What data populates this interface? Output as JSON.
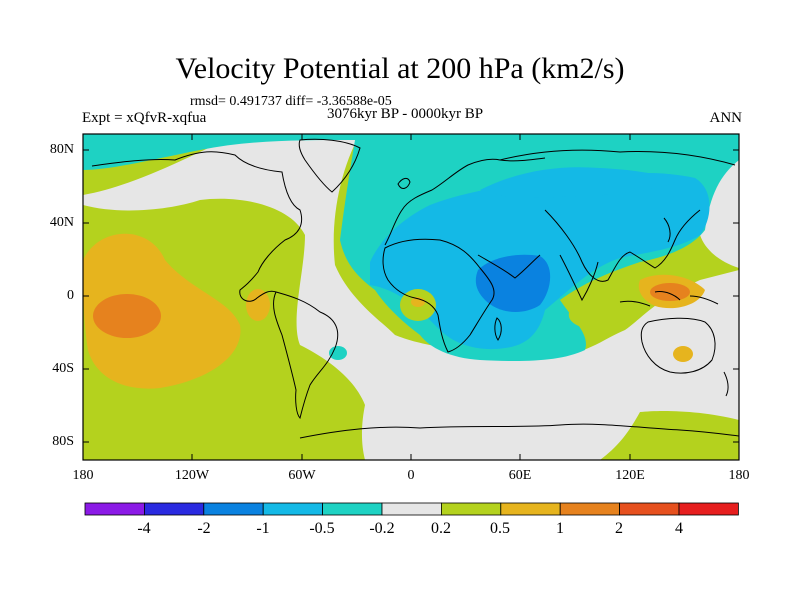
{
  "title": "Velocity Potential at 200 hPa (km2/s)",
  "stats": "rmsd= 0.491737 diff= -3.36588e-05",
  "period": "3076kyr BP - 0000kyr BP",
  "experiment": "Expt = xQfvR-xqfua",
  "season": "ANN",
  "lat_labels": [
    "80N",
    "40N",
    "0",
    "40S",
    "80S"
  ],
  "lon_labels": [
    "180",
    "120W",
    "60W",
    "0",
    "60E",
    "120E",
    "180"
  ],
  "colorbar": {
    "labels": [
      "-4",
      "-2",
      "-1",
      "-0.5",
      "-0.2",
      "0.2",
      "0.5",
      "1",
      "2",
      "4"
    ],
    "colors": [
      "#8b1ae6",
      "#2a2ae0",
      "#0a82e0",
      "#14b9e6",
      "#1ed2c3",
      "#e6e6e6",
      "#b4d21e",
      "#e6b41e",
      "#e6821e",
      "#e6501e",
      "#e61e1e"
    ]
  },
  "field_colors": {
    "land_outline": "#000000",
    "very_neg": "#0a82e0",
    "neg": "#14b9e6",
    "slightly_neg": "#1ed2c3",
    "neutral": "#e6e6e6",
    "slightly_pos": "#b4d21e",
    "pos": "#e6b41e",
    "more_pos": "#e6821e"
  }
}
